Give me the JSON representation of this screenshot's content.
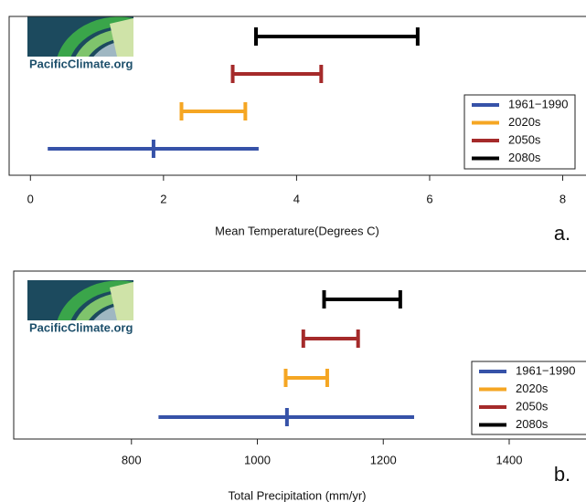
{
  "logo": "PacificClimate.org",
  "chart_data": [
    {
      "type": "range",
      "xlabel": "Mean Temperature(Degrees C)",
      "annotation": "a.",
      "xlim": [
        -0.32,
        8.35
      ],
      "xticks": [
        0,
        2,
        4,
        6,
        8
      ],
      "legend": "lower right",
      "series": [
        {
          "name": "1961−1990",
          "color": "#3652a8",
          "low": 0.26,
          "mid": 1.85,
          "high": 3.43
        },
        {
          "name": "2020s",
          "color": "#f5a623",
          "low": 2.27,
          "high": 3.23
        },
        {
          "name": "2050s",
          "color": "#a52a2a",
          "low": 3.04,
          "high": 4.37
        },
        {
          "name": "2080s",
          "color": "#000000",
          "low": 3.39,
          "high": 5.82
        }
      ]
    },
    {
      "type": "range",
      "xlabel": "Total Precipitation (mm/yr)",
      "annotation": "b.",
      "xlim": [
        613,
        1522
      ],
      "xticks": [
        800,
        1000,
        1200,
        1400
      ],
      "legend": "lower right",
      "series": [
        {
          "name": "1961−1990",
          "color": "#3652a8",
          "low": 843,
          "mid": 1047,
          "high": 1249
        },
        {
          "name": "2020s",
          "color": "#f5a623",
          "low": 1045,
          "high": 1111
        },
        {
          "name": "2050s",
          "color": "#a52a2a",
          "low": 1073,
          "high": 1160
        },
        {
          "name": "2080s",
          "color": "#000000",
          "low": 1106,
          "high": 1227
        }
      ]
    }
  ]
}
